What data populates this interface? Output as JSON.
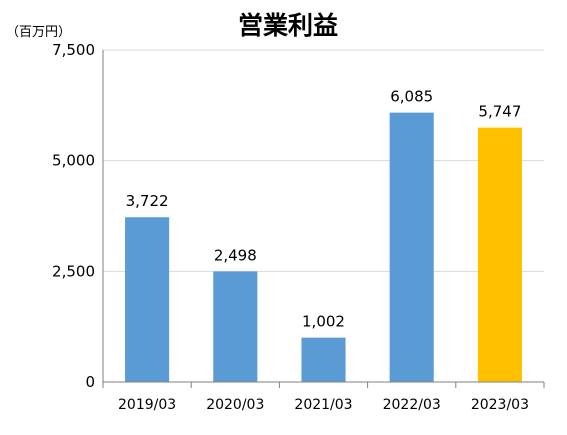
{
  "chart_data": {
    "type": "bar",
    "title": "営業利益",
    "unit_label": "（百万円）",
    "categories": [
      "2019/03",
      "2020/03",
      "2021/03",
      "2022/03",
      "2023/03"
    ],
    "values": [
      3722,
      2498,
      1002,
      6085,
      5747
    ],
    "value_labels": [
      "3,722",
      "2,498",
      "1,002",
      "6,085",
      "5,747"
    ],
    "y_ticks": [
      0,
      2500,
      5000,
      7500
    ],
    "y_tick_labels": [
      "0",
      "2,500",
      "5,000",
      "7,500"
    ],
    "ylim": [
      0,
      7500
    ],
    "grid": true,
    "colors": {
      "default_bar": "#5b9bd5",
      "highlight_bar": "#ffc000",
      "grid": "#d9d9d9",
      "axis": "#808080",
      "text": "#000000"
    },
    "highlight_index": 4
  }
}
